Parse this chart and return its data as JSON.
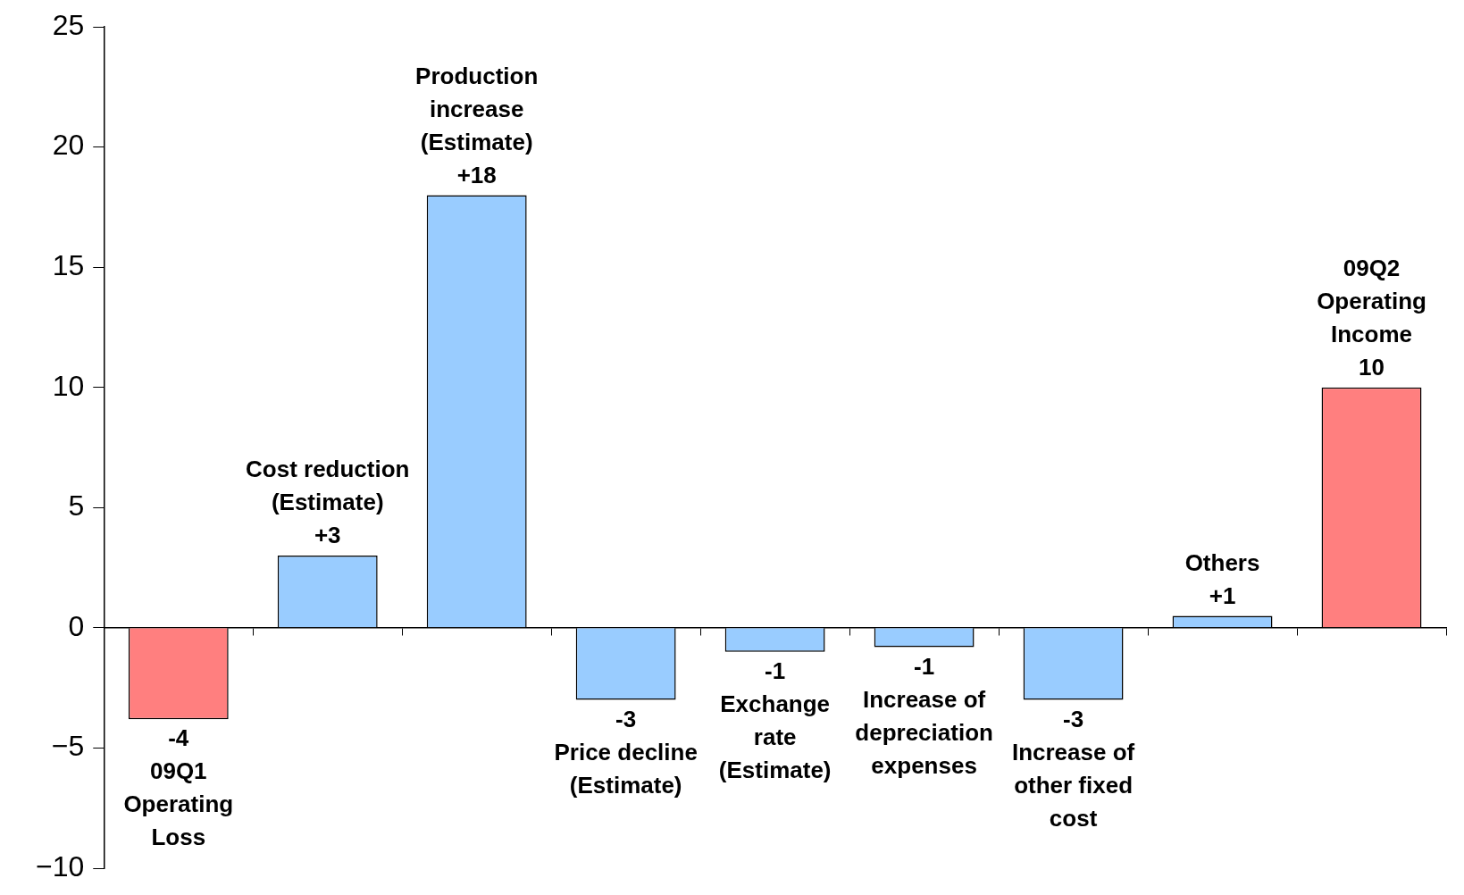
{
  "chart_data": {
    "type": "bar",
    "categories": [
      "09Q1 Operating Loss",
      "Cost reduction (Estimate)",
      "Production increase (Estimate)",
      "Price decline (Estimate)",
      "Exchange rate (Estimate)",
      "Increase of depreciation expenses",
      "Increase of other fixed cost",
      "Others",
      "09Q2 Operating Income"
    ],
    "values": [
      -3.8,
      3,
      18,
      -3,
      -1,
      -0.8,
      -3,
      0.5,
      10
    ],
    "value_labels": [
      "-4",
      "+3",
      "+18",
      "-3",
      "-1",
      "-1",
      "-3",
      "+1",
      "10"
    ],
    "colors": [
      "#ff7f7f",
      "#99ccff",
      "#99ccff",
      "#99ccff",
      "#99ccff",
      "#99ccff",
      "#99ccff",
      "#99ccff",
      "#ff7f7f"
    ],
    "ylim": [
      -10,
      25
    ],
    "yticks": [
      {
        "value": -10,
        "label": "−10"
      },
      {
        "value": -5,
        "label": "−5"
      },
      0,
      5,
      10,
      15,
      20,
      25
    ],
    "grid": false,
    "legend": false,
    "tick_labels": "y"
  }
}
